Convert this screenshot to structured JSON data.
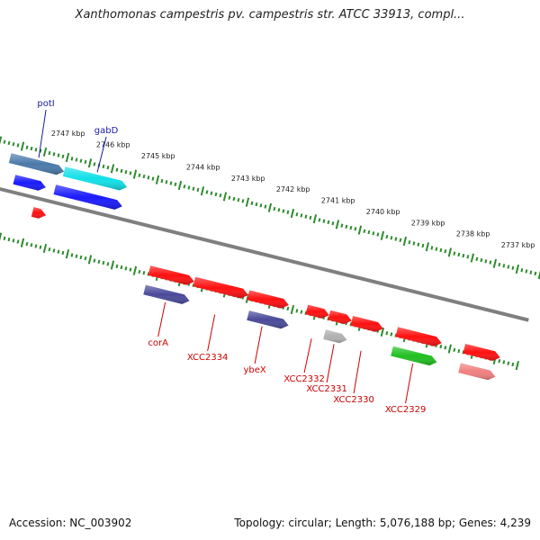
{
  "title": "Xanthomonas campestris pv. campestris str. ATCC 33913, compl...",
  "footer": {
    "accession": "Accession: NC_003902",
    "topology": "Topology: circular; Length: 5,076,188 bp; Genes: 4,239"
  },
  "colors": {
    "backbone": "#7f7f7f",
    "tick": "#2e8b2e",
    "label_upper": "#1a1aa0",
    "label_lower": "#cc0000",
    "red_gene": "#ff1010",
    "blue_gene": "#1a1aff",
    "navy_gene": "#4a4a9a",
    "cyan_gene": "#10e0e8",
    "steel_gene": "#4a7aaa",
    "green_gene": "#20c020",
    "gray_gene": "#b0b0b0",
    "pink_gene": "#f08080"
  },
  "ticks": [
    {
      "kbp": 2747,
      "label": "2747 kbp"
    },
    {
      "kbp": 2746,
      "label": "2746 kbp"
    },
    {
      "kbp": 2745,
      "label": "2745 kbp"
    },
    {
      "kbp": 2744,
      "label": "2744 kbp"
    },
    {
      "kbp": 2743,
      "label": "2743 kbp"
    },
    {
      "kbp": 2742,
      "label": "2742 kbp"
    },
    {
      "kbp": 2741,
      "label": "2741 kbp"
    },
    {
      "kbp": 2740,
      "label": "2740 kbp"
    },
    {
      "kbp": 2739,
      "label": "2739 kbp"
    },
    {
      "kbp": 2738,
      "label": "2738 kbp"
    },
    {
      "kbp": 2737,
      "label": "2737 kbp"
    }
  ],
  "genes_upper": [
    {
      "name": "potI",
      "label": "potI",
      "kbp_start": 2747.7,
      "kbp_end": 2746.5,
      "track": 1,
      "color": "steel_gene"
    },
    {
      "name": "unnamed-blue",
      "label": "",
      "kbp_start": 2747.5,
      "kbp_end": 2746.8,
      "track": 2,
      "color": "blue_gene"
    },
    {
      "name": "gabD",
      "label": "gabD",
      "kbp_start": 2746.5,
      "kbp_end": 2745.1,
      "track": 1,
      "color": "cyan_gene"
    },
    {
      "name": "unnamed-blue2",
      "label": "",
      "kbp_start": 2746.6,
      "kbp_end": 2745.1,
      "track": 2,
      "color": "blue_gene"
    },
    {
      "name": "small-red",
      "label": "",
      "kbp_start": 2746.95,
      "kbp_end": 2746.65,
      "track": 3,
      "color": "red_gene"
    }
  ],
  "genes_lower": [
    {
      "name": "corA",
      "label": "corA",
      "kbp_start": 2744.2,
      "kbp_end": 2743.2,
      "track": 1,
      "color": "red_gene"
    },
    {
      "name": "corA-navy",
      "label": "",
      "kbp_start": 2744.2,
      "kbp_end": 2743.2,
      "track": 2,
      "color": "navy_gene"
    },
    {
      "name": "XCC2334",
      "label": "XCC2334",
      "kbp_start": 2743.2,
      "kbp_end": 2742.0,
      "track": 1,
      "color": "red_gene"
    },
    {
      "name": "ybeX",
      "label": "ybeX",
      "kbp_start": 2742.0,
      "kbp_end": 2741.1,
      "track": 1,
      "color": "red_gene"
    },
    {
      "name": "ybeX-navy",
      "label": "",
      "kbp_start": 2741.9,
      "kbp_end": 2741.0,
      "track": 2,
      "color": "navy_gene"
    },
    {
      "name": "XCC2332",
      "label": "XCC2332",
      "kbp_start": 2740.7,
      "kbp_end": 2740.2,
      "track": 1,
      "color": "red_gene"
    },
    {
      "name": "XCC2331",
      "label": "XCC2331",
      "kbp_start": 2740.2,
      "kbp_end": 2739.7,
      "track": 1,
      "color": "red_gene"
    },
    {
      "name": "XCC2331-gray",
      "label": "",
      "kbp_start": 2740.2,
      "kbp_end": 2739.7,
      "track": 2,
      "color": "gray_gene"
    },
    {
      "name": "XCC2330",
      "label": "XCC2330",
      "kbp_start": 2739.7,
      "kbp_end": 2739.0,
      "track": 1,
      "color": "red_gene"
    },
    {
      "name": "XCC2329",
      "label": "XCC2329",
      "kbp_start": 2738.7,
      "kbp_end": 2737.7,
      "track": 1,
      "color": "red_gene"
    },
    {
      "name": "XCC2329-green",
      "label": "",
      "kbp_start": 2738.7,
      "kbp_end": 2737.7,
      "track": 2,
      "color": "green_gene"
    },
    {
      "name": "edge-red",
      "label": "",
      "kbp_start": 2737.2,
      "kbp_end": 2736.4,
      "track": 1,
      "color": "red_gene"
    },
    {
      "name": "edge-pink",
      "label": "",
      "kbp_start": 2737.2,
      "kbp_end": 2736.4,
      "track": 2,
      "color": "pink_gene"
    }
  ]
}
